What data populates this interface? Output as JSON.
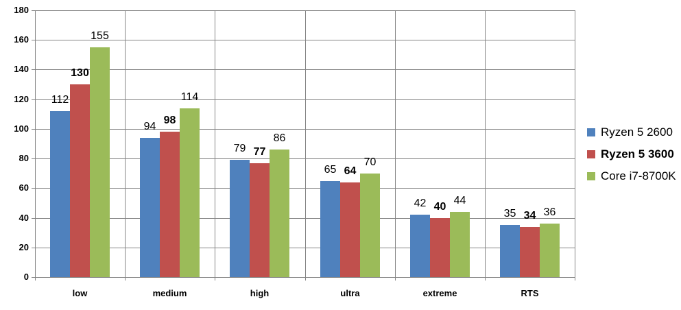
{
  "chart_data": {
    "type": "bar",
    "title": "",
    "xlabel": "",
    "ylabel": "",
    "categories": [
      "low",
      "medium",
      "high",
      "ultra",
      "extreme",
      "RTS"
    ],
    "series": [
      {
        "name": "Ryzen 5 2600",
        "color": "#4F81BD",
        "bold": false,
        "values": [
          112,
          94,
          79,
          65,
          42,
          35
        ]
      },
      {
        "name": "Ryzen 5 3600",
        "color": "#C0504D",
        "bold": true,
        "values": [
          130,
          98,
          77,
          64,
          40,
          34
        ]
      },
      {
        "name": "Core i7-8700K",
        "color": "#9BBB59",
        "bold": false,
        "values": [
          155,
          114,
          86,
          70,
          44,
          36
        ]
      }
    ],
    "ylim": [
      0,
      180
    ],
    "ytick_step": 20,
    "grid": true,
    "legend_position": "right",
    "value_labels": true
  },
  "colors": {
    "gridline": "#848484",
    "axis": "#848484",
    "text": "#000000",
    "background": "#ffffff"
  }
}
